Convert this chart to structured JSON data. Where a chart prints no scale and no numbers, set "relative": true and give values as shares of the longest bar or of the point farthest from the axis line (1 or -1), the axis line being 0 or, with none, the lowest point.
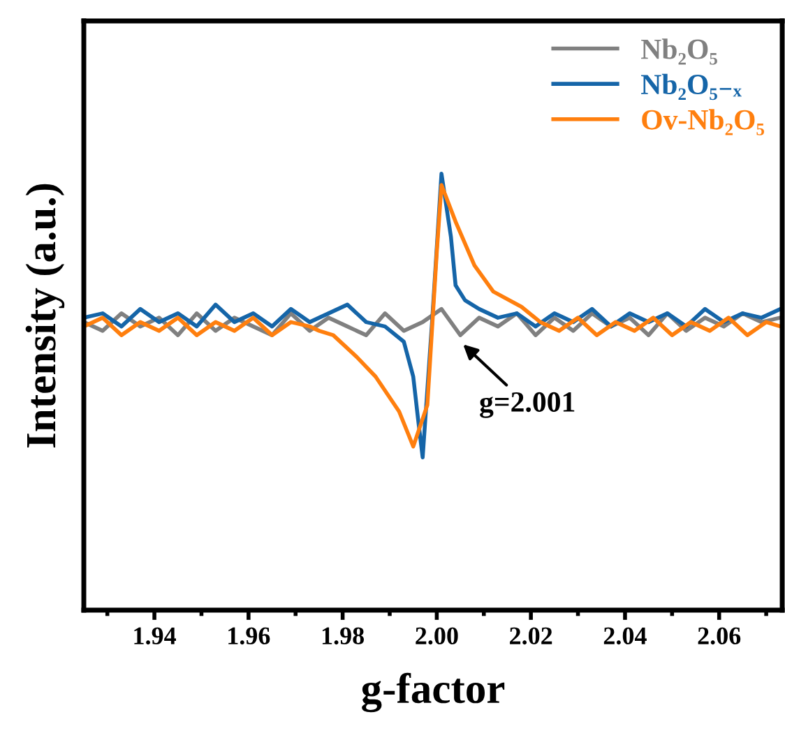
{
  "chart_data": {
    "type": "line",
    "relative": true,
    "xlabel": "g-factor",
    "ylabel": "Intensity (a.u.)",
    "xlim": [
      1.925,
      2.0734
    ],
    "xticks": [
      {
        "value": 1.93,
        "label": null
      },
      1.94,
      {
        "value": 1.95,
        "label": null
      },
      1.96,
      {
        "value": 1.97,
        "label": null
      },
      1.98,
      {
        "value": 1.99,
        "label": null
      },
      "2.00",
      {
        "value": 2.01,
        "label": null
      },
      2.02,
      {
        "value": 2.03,
        "label": null
      },
      2.04,
      {
        "value": 2.05,
        "label": null
      },
      2.06,
      {
        "value": 2.07,
        "label": null
      }
    ],
    "grid": false,
    "legend": "top right",
    "marker": "none",
    "line_style": "solid",
    "annotations": [
      {
        "text": "g=2.001",
        "x": 2.005,
        "y": 0.615
      }
    ],
    "series": [
      {
        "name": "Nb₂O₅",
        "color": "#808080",
        "x": [
          1.925,
          1.929,
          1.933,
          1.937,
          1.941,
          1.945,
          1.949,
          1.953,
          1.957,
          1.961,
          1.965,
          1.969,
          1.973,
          1.977,
          1.981,
          1.985,
          1.989,
          1.993,
          1.997,
          2.001,
          2.005,
          2.009,
          2.013,
          2.017,
          2.021,
          2.025,
          2.029,
          2.033,
          2.037,
          2.041,
          2.045,
          2.049,
          2.053,
          2.057,
          2.061,
          2.065,
          2.069,
          2.073
        ],
        "values": [
          0.66,
          0.64,
          0.68,
          0.65,
          0.67,
          0.63,
          0.68,
          0.64,
          0.67,
          0.65,
          0.63,
          0.68,
          0.64,
          0.67,
          0.65,
          0.63,
          0.68,
          0.64,
          0.66,
          0.69,
          0.63,
          0.67,
          0.65,
          0.68,
          0.63,
          0.67,
          0.64,
          0.68,
          0.65,
          0.67,
          0.63,
          0.68,
          0.64,
          0.67,
          0.65,
          0.68,
          0.66,
          0.67
        ]
      },
      {
        "name": "Nb₂O₅₋ₓ",
        "color": "#1565a8",
        "x": [
          1.925,
          1.929,
          1.933,
          1.937,
          1.941,
          1.945,
          1.949,
          1.953,
          1.957,
          1.961,
          1.965,
          1.969,
          1.973,
          1.977,
          1.981,
          1.985,
          1.989,
          1.993,
          1.995,
          1.996,
          1.997,
          1.999,
          2.001,
          2.003,
          2.004,
          2.006,
          2.009,
          2.013,
          2.017,
          2.021,
          2.025,
          2.029,
          2.033,
          2.037,
          2.041,
          2.045,
          2.049,
          2.053,
          2.057,
          2.061,
          2.065,
          2.069,
          2.073
        ],
        "values": [
          0.67,
          0.68,
          0.65,
          0.69,
          0.66,
          0.68,
          0.65,
          0.7,
          0.66,
          0.68,
          0.65,
          0.69,
          0.66,
          0.68,
          0.7,
          0.66,
          0.65,
          0.615,
          0.535,
          0.44,
          0.35,
          0.66,
          1.0,
          0.856,
          0.744,
          0.71,
          0.69,
          0.67,
          0.68,
          0.65,
          0.68,
          0.66,
          0.69,
          0.65,
          0.68,
          0.66,
          0.68,
          0.65,
          0.69,
          0.66,
          0.68,
          0.67,
          0.69
        ]
      },
      {
        "name": "Ov-Nb₂O₅",
        "color": "#ff7f0e",
        "x": [
          1.925,
          1.929,
          1.933,
          1.937,
          1.941,
          1.945,
          1.949,
          1.953,
          1.957,
          1.961,
          1.965,
          1.969,
          1.973,
          1.975,
          1.978,
          1.983,
          1.987,
          1.992,
          1.995,
          1.998,
          2.0,
          2.001,
          2.004,
          2.008,
          2.012,
          2.018,
          2.022,
          2.026,
          2.03,
          2.034,
          2.038,
          2.042,
          2.046,
          2.05,
          2.054,
          2.058,
          2.062,
          2.066,
          2.07,
          2.073
        ],
        "values": [
          0.65,
          0.67,
          0.63,
          0.66,
          0.64,
          0.67,
          0.63,
          0.66,
          0.64,
          0.67,
          0.63,
          0.66,
          0.65,
          0.64,
          0.63,
          0.58,
          0.535,
          0.455,
          0.375,
          0.47,
          0.82,
          0.974,
          0.89,
          0.79,
          0.73,
          0.695,
          0.66,
          0.64,
          0.67,
          0.63,
          0.66,
          0.64,
          0.67,
          0.63,
          0.66,
          0.64,
          0.67,
          0.63,
          0.66,
          0.65
        ]
      }
    ]
  }
}
